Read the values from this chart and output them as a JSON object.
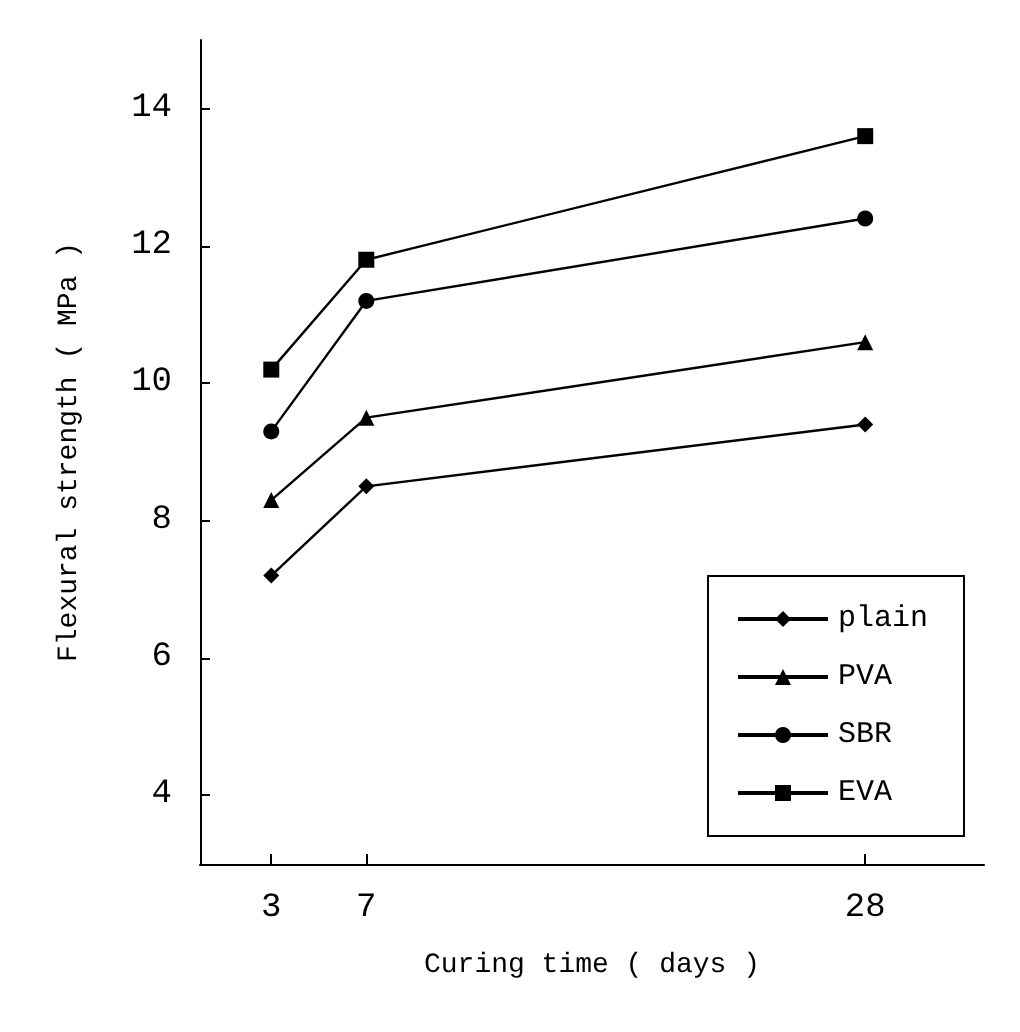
{
  "chart_data": {
    "type": "line",
    "xlabel": "Curing time ( days )",
    "ylabel": "Flexural strength ( MPa )",
    "x": [
      3,
      7,
      28
    ],
    "xlim": [
      0,
      33
    ],
    "xticks": [
      3,
      7,
      28
    ],
    "ylim": [
      3,
      15
    ],
    "yticks": [
      4,
      6,
      8,
      10,
      12,
      14
    ],
    "grid": false,
    "legend": "bottom right",
    "line_style": "solid",
    "series": [
      {
        "name": "plain",
        "color": "#000000",
        "marker": "diamond",
        "values": [
          7.2,
          8.5,
          9.4
        ]
      },
      {
        "name": "PVA",
        "color": "#000000",
        "marker": "triangle",
        "values": [
          8.3,
          9.5,
          10.6
        ]
      },
      {
        "name": "SBR",
        "color": "#000000",
        "marker": "circle",
        "values": [
          9.3,
          11.2,
          12.4
        ]
      },
      {
        "name": "EVA",
        "color": "#000000",
        "marker": "square",
        "values": [
          10.2,
          11.8,
          13.6
        ]
      }
    ]
  }
}
